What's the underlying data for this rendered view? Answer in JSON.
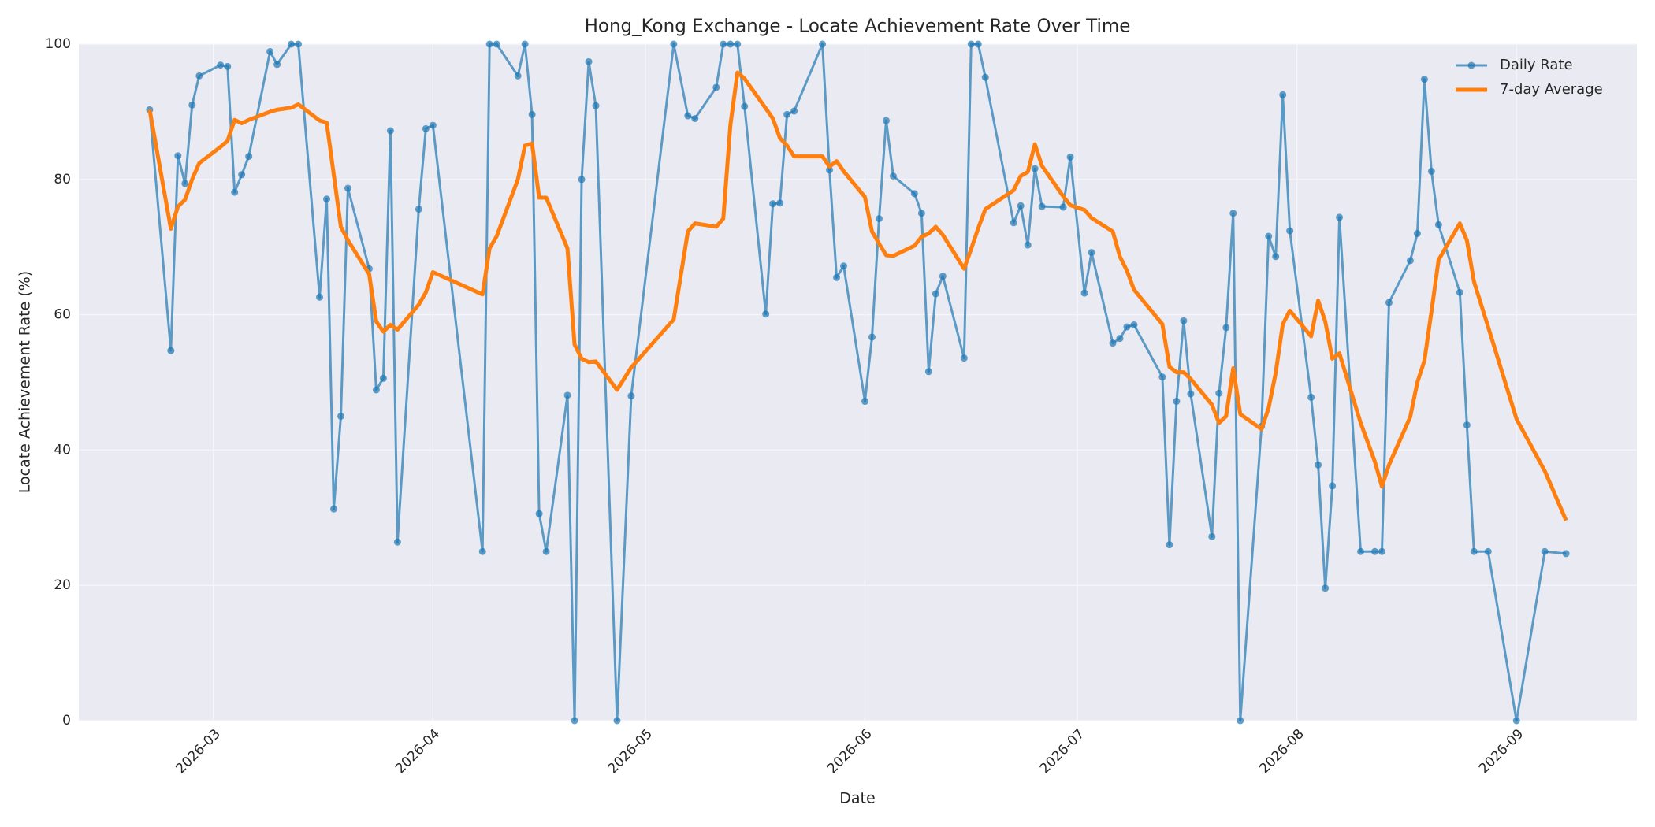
{
  "chart_data": {
    "type": "line",
    "title": "Hong_Kong Exchange - Locate Achievement Rate Over Time",
    "xlabel": "Date",
    "ylabel": "Locate Achievement Rate (%)",
    "x": [
      -9,
      -6,
      -5,
      -4,
      -3,
      -2,
      1,
      2,
      3,
      4,
      5,
      8,
      9,
      11,
      12,
      15,
      16,
      17,
      18,
      19,
      22,
      23,
      24,
      25,
      26,
      29,
      30,
      31,
      38,
      39,
      40,
      43,
      44,
      45,
      46,
      47,
      50,
      51,
      52,
      53,
      54,
      57,
      59,
      65,
      67,
      68,
      71,
      72,
      73,
      74,
      75,
      78,
      79,
      80,
      81,
      82,
      86,
      87,
      88,
      89,
      92,
      93,
      94,
      95,
      96,
      99,
      100,
      101,
      102,
      103,
      106,
      107,
      108,
      109,
      113,
      114,
      115,
      116,
      117,
      120,
      121,
      123,
      124,
      127,
      128,
      129,
      130,
      134,
      135,
      136,
      137,
      138,
      141,
      142,
      143,
      144,
      145,
      148,
      149,
      150,
      151,
      152,
      155,
      156,
      157,
      158,
      159,
      162,
      164,
      165,
      166,
      169,
      170,
      171,
      172,
      173,
      176,
      177,
      178,
      180,
      184,
      188,
      191
    ],
    "series": [
      {
        "name": "Daily Rate",
        "color": "#1f77b4",
        "markers": true,
        "width": 3,
        "values": [
          90.3,
          54.7,
          83.5,
          79.4,
          91,
          95.3,
          96.9,
          96.7,
          78.1,
          80.7,
          83.4,
          98.9,
          97,
          100,
          100,
          62.6,
          77.1,
          31.3,
          45,
          78.7,
          66.8,
          48.9,
          50.6,
          87.2,
          26.4,
          75.6,
          87.5,
          88,
          25,
          100,
          100,
          95.3,
          100,
          89.6,
          30.6,
          25,
          48.1,
          0,
          80,
          97.4,
          90.9,
          0,
          48,
          100,
          89.4,
          89,
          93.6,
          100,
          100,
          100,
          90.8,
          60.1,
          76.4,
          76.5,
          89.6,
          90.1,
          100,
          81.4,
          65.5,
          67.2,
          47.2,
          56.7,
          74.2,
          88.7,
          80.5,
          77.9,
          75,
          51.6,
          63.1,
          65.7,
          53.6,
          100,
          100,
          95.1,
          73.6,
          76.1,
          70.3,
          81.6,
          76,
          75.9,
          83.3,
          63.2,
          69.2,
          55.8,
          56.5,
          58.2,
          58.5,
          50.8,
          26,
          47.2,
          59.1,
          48.3,
          27.2,
          48.4,
          58.1,
          75,
          0,
          43.5,
          71.6,
          68.6,
          92.5,
          72.4,
          47.8,
          37.8,
          19.6,
          34.7,
          74.4,
          25,
          25,
          25,
          61.8,
          68,
          72,
          94.8,
          81.2,
          73.3,
          63.3,
          43.7,
          25,
          25,
          0,
          25,
          24.7
        ]
      },
      {
        "name": "7-day Average",
        "color": "#ff7f0e",
        "markers": false,
        "width": 5,
        "values": [
          90.3,
          72.7,
          76,
          77,
          80,
          82.4,
          84.8,
          85.7,
          88.8,
          88.3,
          88.8,
          90,
          90.3,
          90.6,
          91.1,
          88.7,
          88.4,
          80.7,
          73,
          71,
          66,
          59,
          57.5,
          58.5,
          57.8,
          61.5,
          63.3,
          66.3,
          63,
          69.8,
          71.6,
          80,
          85,
          85.3,
          77.3,
          77.3,
          69.8,
          55.6,
          53.5,
          53,
          53.1,
          48.9,
          52.2,
          59.3,
          72.3,
          73.5,
          73,
          74.2,
          88,
          95.8,
          94.9,
          90.5,
          89,
          86.1,
          85,
          83.4,
          83.4,
          81.9,
          82.7,
          81.2,
          77.4,
          72.3,
          70.5,
          68.8,
          68.7,
          70.2,
          71.5,
          72,
          73,
          71.8,
          66.8,
          69.7,
          72.8,
          75.6,
          78.4,
          80.5,
          81.1,
          85.2,
          82,
          77.5,
          76.2,
          75.5,
          74.3,
          72.3,
          68.6,
          66.5,
          63.7,
          58.6,
          52.3,
          51.5,
          51.5,
          50.5,
          46.7,
          44,
          45,
          52.1,
          45.3,
          43.1,
          46.2,
          51.4,
          58.6,
          60.6,
          56.8,
          62.1,
          59,
          53.5,
          54.3,
          44,
          38.3,
          34.6,
          37.8,
          44.9,
          50,
          53.2,
          60.5,
          68.1,
          73.5,
          71,
          64.9,
          58.2,
          44.6,
          36.9,
          29.6
        ]
      }
    ],
    "xlim": [
      -19,
      201
    ],
    "xticks": [
      {
        "value": 0,
        "label": "2026-03"
      },
      {
        "value": 31,
        "label": "2026-04"
      },
      {
        "value": 61,
        "label": "2026-05"
      },
      {
        "value": 92,
        "label": "2026-06"
      },
      {
        "value": 122,
        "label": "2026-07"
      },
      {
        "value": 153,
        "label": "2026-08"
      },
      {
        "value": 184,
        "label": "2026-09"
      }
    ],
    "ylim": [
      0,
      100
    ],
    "yticks": [
      0,
      20,
      40,
      60,
      80,
      100
    ],
    "grid": true,
    "legend": "upper right"
  }
}
